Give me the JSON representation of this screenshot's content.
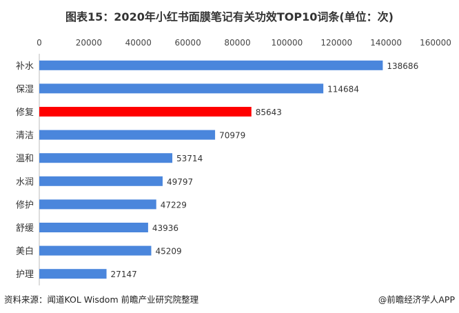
{
  "chart_data": {
    "type": "bar",
    "orientation": "horizontal",
    "title": "图表15：2020年小红书面膜笔记有关功效TOP10词条(单位：次)",
    "categories": [
      "补水",
      "保湿",
      "修复",
      "清洁",
      "温和",
      "水润",
      "修护",
      "舒缓",
      "美白",
      "护理"
    ],
    "values": [
      138686,
      114684,
      85643,
      70979,
      53714,
      49797,
      47229,
      43936,
      45209,
      27147
    ],
    "xlim": [
      0,
      160000
    ],
    "xticks": [
      "0",
      "20000",
      "40000",
      "60000",
      "80000",
      "100000",
      "120000",
      "140000",
      "160000"
    ],
    "xaxis_position": "top",
    "grid": false,
    "legend": "none",
    "colors": {
      "default": "#4a86dc",
      "highlight": "#ff0000"
    },
    "highlight_category": "修复"
  },
  "footer": {
    "source": "资料来源：闻道KOL Wisdom 前瞻产业研究院整理",
    "brand": "@前瞻经济学人APP"
  }
}
